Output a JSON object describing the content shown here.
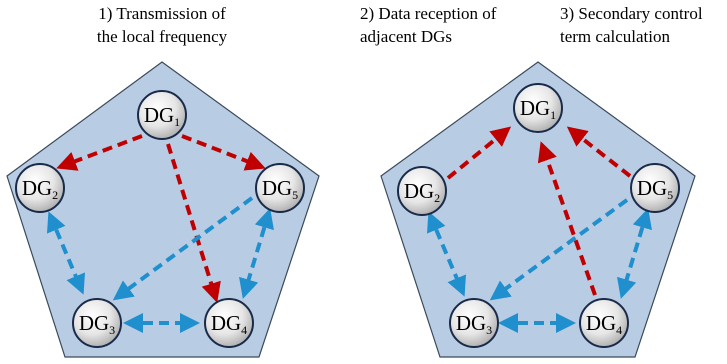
{
  "captions": {
    "step1_line1": "1) Transmission of",
    "step1_line2": "the local frequency",
    "step2_line1": "2) Data reception of",
    "step2_line2": "adjacent DGs",
    "step3_line1": "3) Secondary control",
    "step3_line2": "term calculation"
  },
  "node_prefix": "DG",
  "nodes": [
    "1",
    "2",
    "3",
    "4",
    "5"
  ],
  "colors": {
    "pentagon_fill": "#b8cce4",
    "pentagon_stroke": "#3b4a5a",
    "red_arrow": "#c00000",
    "blue_arrow": "#1f8fce",
    "node_outline": "#1a2b4a"
  },
  "left_diagram": {
    "red_edges": [
      [
        "DG1",
        "DG2",
        "to"
      ],
      [
        "DG1",
        "DG5",
        "to"
      ],
      [
        "DG1",
        "DG4",
        "to"
      ]
    ],
    "blue_edges": [
      [
        "DG2",
        "DG3",
        "both"
      ],
      [
        "DG3",
        "DG4",
        "both"
      ],
      [
        "DG4",
        "DG5",
        "both"
      ],
      [
        "DG5",
        "DG3",
        "to"
      ]
    ]
  },
  "right_diagram": {
    "red_edges": [
      [
        "DG2",
        "DG1",
        "to"
      ],
      [
        "DG5",
        "DG1",
        "to"
      ],
      [
        "DG4",
        "DG1",
        "to"
      ]
    ],
    "blue_edges": [
      [
        "DG2",
        "DG3",
        "both"
      ],
      [
        "DG3",
        "DG4",
        "both"
      ],
      [
        "DG4",
        "DG5",
        "both"
      ],
      [
        "DG5",
        "DG3",
        "to"
      ]
    ]
  }
}
